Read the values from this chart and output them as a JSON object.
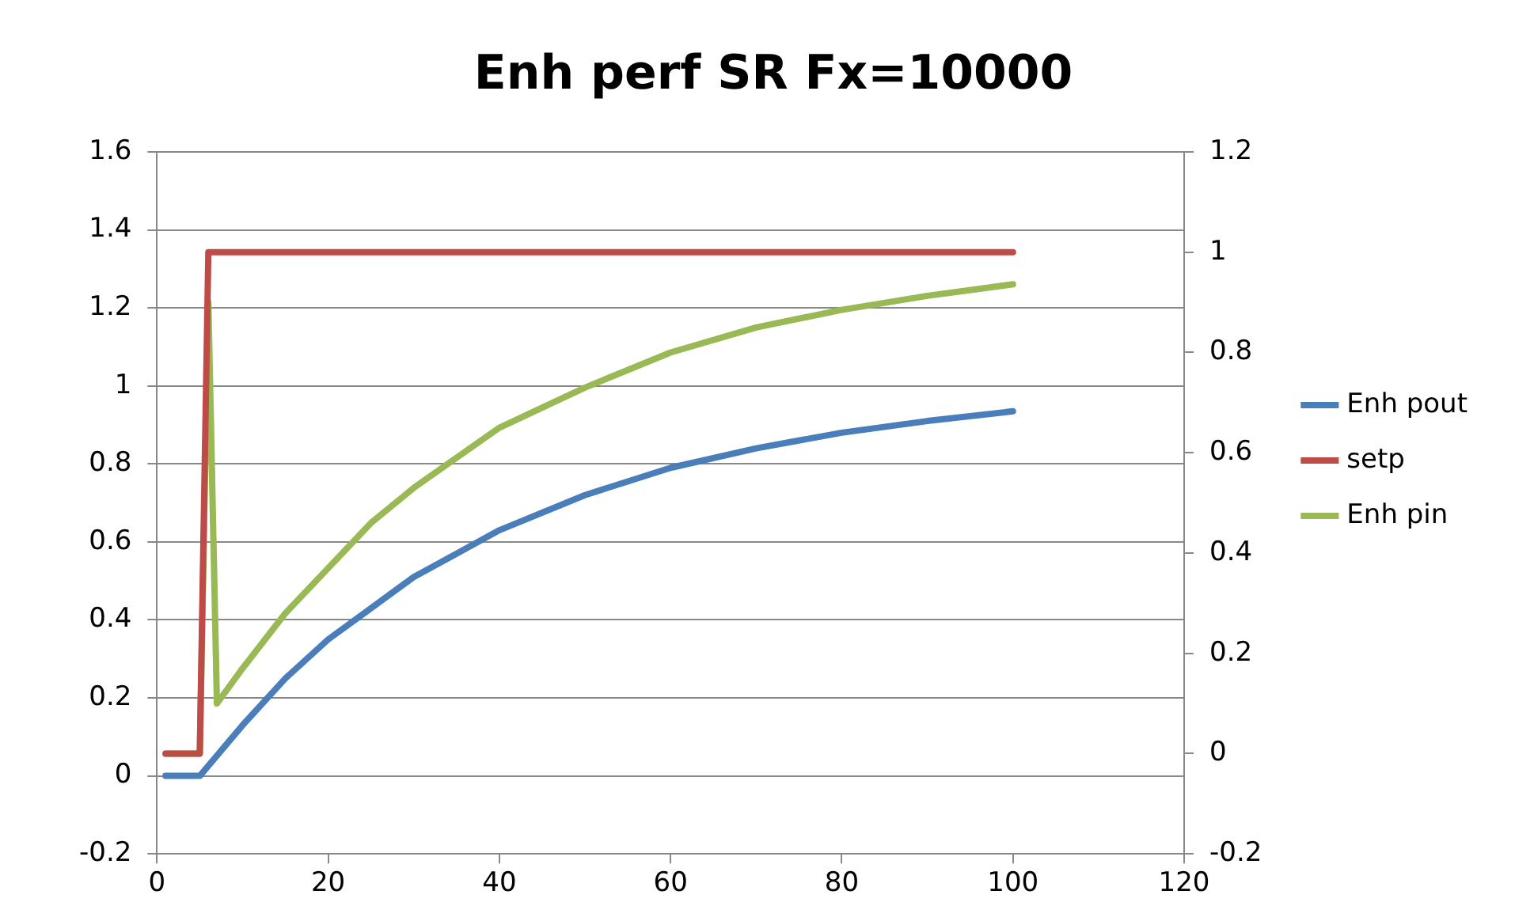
{
  "chart_data": {
    "type": "line",
    "title": "Enh perf SR Fx=10000",
    "xlim": [
      0,
      120
    ],
    "xticks": [
      0,
      20,
      40,
      60,
      80,
      100,
      120
    ],
    "ylim": [
      -0.2,
      1.6
    ],
    "yticks": [
      -0.2,
      0,
      0.2,
      0.4,
      0.6,
      0.8,
      1,
      1.2,
      1.4,
      1.6
    ],
    "y2lim": [
      -0.2,
      1.2
    ],
    "y2ticks": [
      -0.2,
      0,
      0.2,
      0.4,
      0.6,
      0.8,
      1,
      1.2
    ],
    "grid": "y",
    "legend": "right",
    "marker": "none",
    "line_style": "solid",
    "series": [
      {
        "name": "Enh pout",
        "color": "#4a7ebb",
        "x": [
          1,
          5,
          10,
          15,
          20,
          25,
          30,
          35,
          40,
          50,
          60,
          70,
          80,
          90,
          100
        ],
        "values": [
          0,
          0,
          0.13,
          0.25,
          0.35,
          0.43,
          0.51,
          0.57,
          0.63,
          0.72,
          0.79,
          0.84,
          0.88,
          0.91,
          0.935
        ]
      },
      {
        "name": "setp",
        "color": "#be4b48",
        "axis": "y2",
        "x": [
          1,
          5,
          6,
          100
        ],
        "values": [
          0,
          0,
          1,
          1
        ]
      },
      {
        "name": "Enh pin",
        "color": "#98b954",
        "axis": "y2",
        "x": [
          1,
          5,
          6,
          7,
          10,
          15,
          20,
          25,
          30,
          35,
          40,
          50,
          60,
          70,
          80,
          90,
          100
        ],
        "values": [
          0,
          0,
          0.9,
          0.1,
          0.17,
          0.28,
          0.37,
          0.46,
          0.53,
          0.59,
          0.65,
          0.73,
          0.8,
          0.85,
          0.885,
          0.913,
          0.936
        ]
      }
    ]
  }
}
